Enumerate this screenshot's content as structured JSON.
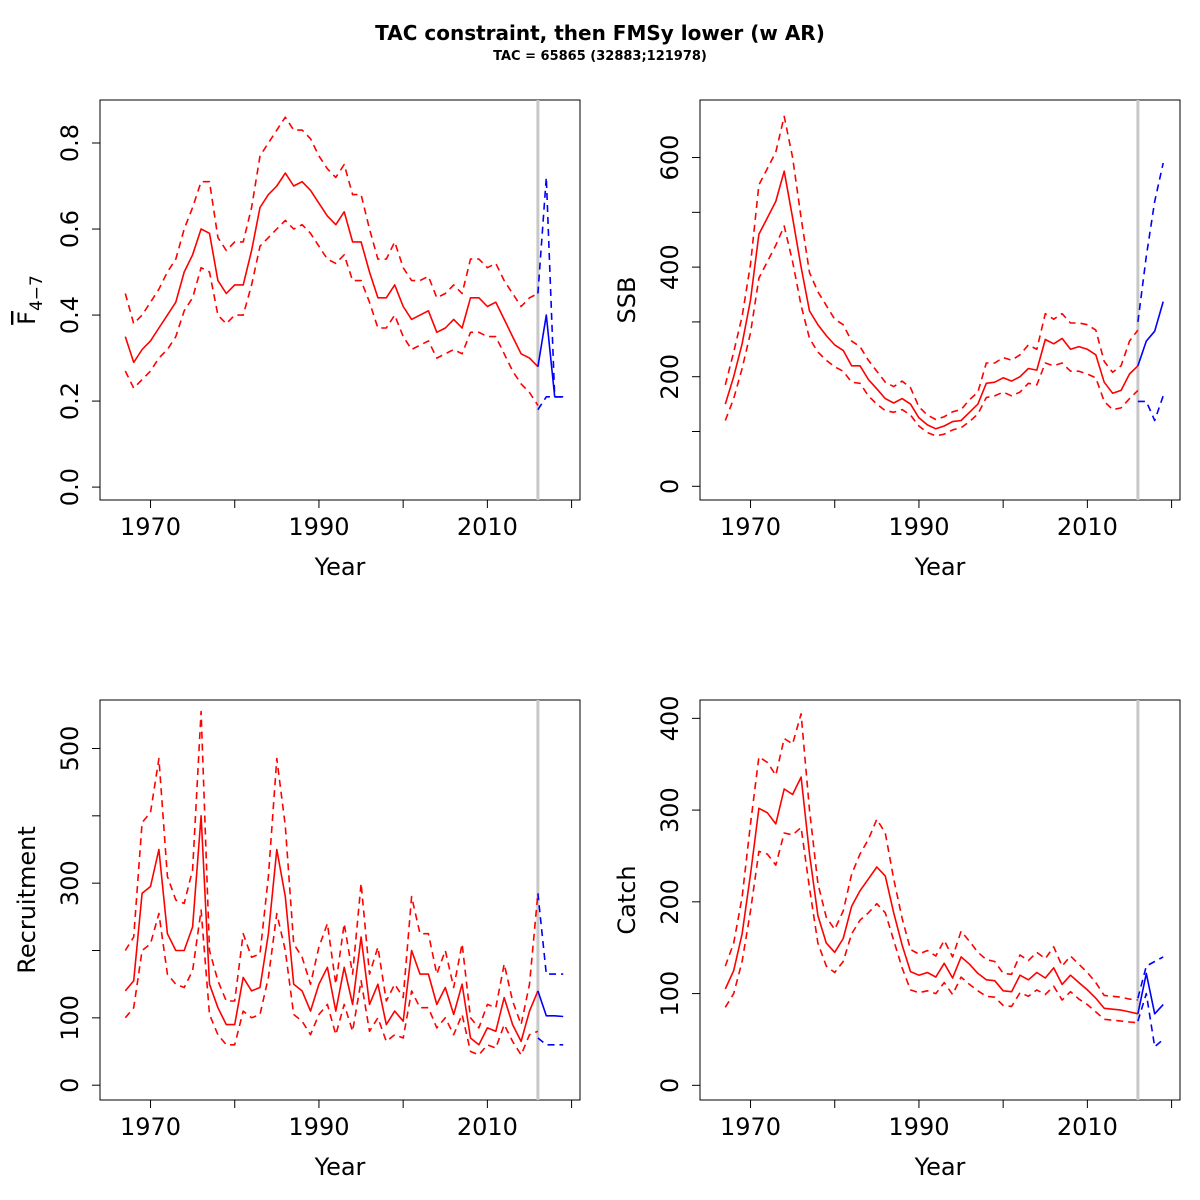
{
  "title": "TAC constraint, then FMSy lower (w AR)",
  "subtitle": "TAC = 65865 (32883;121978)",
  "colors": {
    "historic": "#ff0000",
    "forecast": "#0000ff",
    "divider": "#c8c8c8"
  },
  "chart_data": [
    {
      "type": "line",
      "panel": "top-left",
      "xlabel": "Year",
      "ylabel": "F",
      "ylabel_sub": "4−7",
      "xlim": [
        1964,
        2021
      ],
      "ylim": [
        -0.03,
        0.9
      ],
      "xticks": [
        1970,
        1980,
        1990,
        2000,
        2010,
        2020
      ],
      "xtick_labels": [
        "1970",
        "",
        "1990",
        "",
        "2010",
        ""
      ],
      "yticks": [
        0.0,
        0.2,
        0.4,
        0.6,
        0.8
      ],
      "ytick_labels": [
        "0.0",
        "0.2",
        "0.4",
        "0.6",
        "0.8"
      ],
      "divider_year": 2016,
      "historic": {
        "x": [
          1967,
          1968,
          1969,
          1970,
          1971,
          1972,
          1973,
          1974,
          1975,
          1976,
          1977,
          1978,
          1979,
          1980,
          1981,
          1982,
          1983,
          1984,
          1985,
          1986,
          1987,
          1988,
          1989,
          1990,
          1991,
          1992,
          1993,
          1994,
          1995,
          1996,
          1997,
          1998,
          1999,
          2000,
          2001,
          2002,
          2003,
          2004,
          2005,
          2006,
          2007,
          2008,
          2009,
          2010,
          2011,
          2012,
          2013,
          2014,
          2015,
          2016
        ],
        "y": [
          0.35,
          0.29,
          0.32,
          0.34,
          0.37,
          0.4,
          0.43,
          0.5,
          0.54,
          0.6,
          0.59,
          0.48,
          0.45,
          0.47,
          0.47,
          0.55,
          0.65,
          0.68,
          0.7,
          0.73,
          0.7,
          0.71,
          0.69,
          0.66,
          0.63,
          0.61,
          0.64,
          0.57,
          0.57,
          0.5,
          0.44,
          0.44,
          0.47,
          0.42,
          0.39,
          0.4,
          0.41,
          0.36,
          0.37,
          0.39,
          0.37,
          0.44,
          0.44,
          0.42,
          0.43,
          0.39,
          0.35,
          0.31,
          0.3,
          0.28
        ],
        "lower": [
          0.27,
          0.23,
          0.25,
          0.27,
          0.3,
          0.32,
          0.35,
          0.41,
          0.44,
          0.51,
          0.5,
          0.4,
          0.38,
          0.4,
          0.4,
          0.47,
          0.56,
          0.58,
          0.6,
          0.62,
          0.6,
          0.61,
          0.59,
          0.56,
          0.53,
          0.52,
          0.54,
          0.48,
          0.48,
          0.43,
          0.37,
          0.37,
          0.4,
          0.35,
          0.32,
          0.33,
          0.34,
          0.3,
          0.31,
          0.32,
          0.31,
          0.36,
          0.36,
          0.35,
          0.35,
          0.31,
          0.27,
          0.24,
          0.22,
          0.19
        ],
        "upper": [
          0.45,
          0.38,
          0.4,
          0.43,
          0.46,
          0.5,
          0.53,
          0.6,
          0.65,
          0.71,
          0.71,
          0.58,
          0.55,
          0.57,
          0.57,
          0.65,
          0.77,
          0.8,
          0.83,
          0.86,
          0.83,
          0.83,
          0.81,
          0.77,
          0.74,
          0.72,
          0.75,
          0.68,
          0.68,
          0.6,
          0.53,
          0.53,
          0.57,
          0.51,
          0.48,
          0.48,
          0.49,
          0.44,
          0.45,
          0.47,
          0.45,
          0.53,
          0.53,
          0.51,
          0.52,
          0.48,
          0.45,
          0.42,
          0.44,
          0.45
        ]
      },
      "forecast": {
        "x": [
          2016,
          2017,
          2018,
          2019
        ],
        "y": [
          0.28,
          0.4,
          0.21,
          0.21
        ],
        "lower": [
          0.18,
          0.21,
          0.21,
          0.21
        ],
        "upper": [
          0.45,
          0.72,
          0.21,
          0.21
        ]
      }
    },
    {
      "type": "line",
      "panel": "top-right",
      "xlabel": "Year",
      "ylabel": "SSB",
      "xlim": [
        1964,
        2021
      ],
      "ylim": [
        -25,
        705
      ],
      "xticks": [
        1970,
        1980,
        1990,
        2000,
        2010,
        2020
      ],
      "xtick_labels": [
        "1970",
        "",
        "1990",
        "",
        "2010",
        ""
      ],
      "yticks": [
        0,
        100,
        200,
        300,
        400,
        500,
        600
      ],
      "ytick_labels": [
        "0",
        "",
        "200",
        "",
        "400",
        "",
        "600"
      ],
      "divider_year": 2016,
      "historic": {
        "x": [
          1967,
          1968,
          1969,
          1970,
          1971,
          1972,
          1973,
          1974,
          1975,
          1976,
          1977,
          1978,
          1979,
          1980,
          1981,
          1982,
          1983,
          1984,
          1985,
          1986,
          1987,
          1988,
          1989,
          1990,
          1991,
          1992,
          1993,
          1994,
          1995,
          1996,
          1997,
          1998,
          1999,
          2000,
          2001,
          2002,
          2003,
          2004,
          2005,
          2006,
          2007,
          2008,
          2009,
          2010,
          2011,
          2012,
          2013,
          2014,
          2015,
          2016
        ],
        "y": [
          150,
          200,
          260,
          340,
          460,
          490,
          520,
          575,
          490,
          400,
          320,
          295,
          275,
          258,
          248,
          220,
          220,
          195,
          178,
          160,
          152,
          160,
          150,
          125,
          112,
          105,
          110,
          118,
          120,
          135,
          150,
          188,
          190,
          198,
          192,
          200,
          215,
          212,
          268,
          260,
          270,
          250,
          255,
          250,
          240,
          190,
          170,
          175,
          205,
          220
        ],
        "lower": [
          120,
          160,
          215,
          280,
          380,
          410,
          440,
          475,
          410,
          330,
          270,
          245,
          230,
          218,
          210,
          190,
          188,
          165,
          150,
          138,
          135,
          140,
          130,
          110,
          98,
          92,
          95,
          103,
          107,
          118,
          132,
          162,
          165,
          172,
          165,
          172,
          188,
          185,
          225,
          220,
          225,
          210,
          210,
          205,
          198,
          155,
          140,
          143,
          160,
          175
        ],
        "upper": [
          185,
          245,
          310,
          405,
          550,
          580,
          610,
          675,
          600,
          490,
          390,
          355,
          330,
          305,
          295,
          265,
          255,
          230,
          210,
          190,
          182,
          192,
          180,
          145,
          130,
          122,
          127,
          136,
          140,
          158,
          172,
          225,
          225,
          235,
          230,
          240,
          258,
          250,
          315,
          305,
          315,
          298,
          298,
          295,
          285,
          228,
          208,
          220,
          265,
          285
        ]
      },
      "forecast": {
        "x": [
          2016,
          2017,
          2018,
          2019
        ],
        "y": [
          220,
          265,
          283,
          337
        ],
        "lower": [
          155,
          155,
          120,
          165
        ],
        "upper": [
          300,
          420,
          520,
          590
        ]
      }
    },
    {
      "type": "line",
      "panel": "bottom-left",
      "xlabel": "Year",
      "ylabel": "Recruitment",
      "xlim": [
        1964,
        2021
      ],
      "ylim": [
        -22,
        572
      ],
      "xticks": [
        1970,
        1980,
        1990,
        2000,
        2010,
        2020
      ],
      "xtick_labels": [
        "1970",
        "",
        "1990",
        "",
        "2010",
        ""
      ],
      "yticks": [
        0,
        100,
        200,
        300,
        400,
        500
      ],
      "ytick_labels": [
        "0",
        "100",
        "",
        "300",
        "",
        "500"
      ],
      "divider_year": 2016,
      "historic": {
        "x": [
          1967,
          1968,
          1969,
          1970,
          1971,
          1972,
          1973,
          1974,
          1975,
          1976,
          1977,
          1978,
          1979,
          1980,
          1981,
          1982,
          1983,
          1984,
          1985,
          1986,
          1987,
          1988,
          1989,
          1990,
          1991,
          1992,
          1993,
          1994,
          1995,
          1996,
          1997,
          1998,
          1999,
          2000,
          2001,
          2002,
          2003,
          2004,
          2005,
          2006,
          2007,
          2008,
          2009,
          2010,
          2011,
          2012,
          2013,
          2014,
          2015,
          2016
        ],
        "y": [
          140,
          155,
          285,
          295,
          350,
          225,
          200,
          200,
          235,
          400,
          150,
          115,
          90,
          90,
          160,
          140,
          145,
          225,
          350,
          280,
          150,
          140,
          110,
          150,
          175,
          110,
          175,
          120,
          220,
          120,
          150,
          90,
          110,
          95,
          200,
          165,
          165,
          120,
          145,
          105,
          150,
          70,
          60,
          85,
          80,
          130,
          90,
          65,
          110,
          140
        ],
        "lower": [
          100,
          115,
          200,
          210,
          255,
          165,
          150,
          145,
          170,
          260,
          105,
          75,
          60,
          60,
          110,
          100,
          105,
          160,
          255,
          200,
          105,
          95,
          75,
          105,
          120,
          75,
          120,
          80,
          155,
          80,
          100,
          65,
          75,
          70,
          140,
          115,
          115,
          85,
          100,
          75,
          105,
          50,
          45,
          60,
          55,
          90,
          65,
          45,
          75,
          80
        ],
        "upper": [
          200,
          220,
          390,
          405,
          485,
          310,
          275,
          270,
          320,
          555,
          200,
          155,
          125,
          125,
          225,
          190,
          195,
          310,
          485,
          385,
          210,
          190,
          150,
          205,
          240,
          150,
          240,
          165,
          300,
          165,
          205,
          125,
          150,
          130,
          280,
          225,
          225,
          165,
          200,
          145,
          210,
          100,
          85,
          120,
          115,
          180,
          125,
          90,
          150,
          285
        ]
      },
      "forecast": {
        "x": [
          2016,
          2017,
          2018,
          2019
        ],
        "y": [
          140,
          103,
          103,
          102
        ],
        "lower": [
          70,
          60,
          60,
          60
        ],
        "upper": [
          285,
          165,
          165,
          165
        ]
      }
    },
    {
      "type": "line",
      "panel": "bottom-right",
      "xlabel": "Year",
      "ylabel": "Catch",
      "xlim": [
        1964,
        2021
      ],
      "ylim": [
        -16,
        420
      ],
      "xticks": [
        1970,
        1980,
        1990,
        2000,
        2010,
        2020
      ],
      "xtick_labels": [
        "1970",
        "",
        "1990",
        "",
        "2010",
        ""
      ],
      "yticks": [
        0,
        100,
        200,
        300,
        400
      ],
      "ytick_labels": [
        "0",
        "100",
        "200",
        "300",
        "400"
      ],
      "divider_year": 2016,
      "historic": {
        "x": [
          1967,
          1968,
          1969,
          1970,
          1971,
          1972,
          1973,
          1974,
          1975,
          1976,
          1977,
          1978,
          1979,
          1980,
          1981,
          1982,
          1983,
          1984,
          1985,
          1986,
          1987,
          1988,
          1989,
          1990,
          1991,
          1992,
          1993,
          1994,
          1995,
          1996,
          1997,
          1998,
          1999,
          2000,
          2001,
          2002,
          2003,
          2004,
          2005,
          2006,
          2007,
          2008,
          2009,
          2010,
          2011,
          2012,
          2013,
          2014,
          2015,
          2016
        ],
        "y": [
          105,
          125,
          165,
          230,
          302,
          297,
          285,
          323,
          317,
          336,
          252,
          185,
          155,
          145,
          160,
          195,
          212,
          225,
          238,
          228,
          188,
          153,
          124,
          120,
          123,
          118,
          133,
          117,
          140,
          132,
          122,
          115,
          114,
          103,
          102,
          120,
          115,
          123,
          117,
          128,
          110,
          120,
          112,
          104,
          95,
          84,
          83,
          82,
          80,
          78
        ],
        "lower": [
          85,
          100,
          135,
          190,
          255,
          252,
          240,
          275,
          273,
          281,
          215,
          155,
          130,
          123,
          135,
          165,
          180,
          188,
          198,
          188,
          158,
          128,
          104,
          101,
          103,
          100,
          112,
          99,
          118,
          110,
          103,
          97,
          96,
          87,
          86,
          101,
          97,
          104,
          99,
          108,
          93,
          102,
          94,
          88,
          80,
          72,
          71,
          70,
          69,
          68
        ],
        "upper": [
          130,
          155,
          205,
          285,
          358,
          352,
          338,
          378,
          372,
          405,
          300,
          220,
          183,
          170,
          190,
          230,
          252,
          268,
          290,
          275,
          225,
          182,
          148,
          143,
          147,
          141,
          158,
          140,
          168,
          157,
          145,
          137,
          135,
          122,
          121,
          142,
          136,
          145,
          138,
          151,
          130,
          141,
          132,
          123,
          112,
          98,
          97,
          96,
          94,
          93
        ]
      },
      "forecast": {
        "x": [
          2016,
          2017,
          2018,
          2019
        ],
        "y": [
          78,
          122,
          78,
          88
        ],
        "lower": [
          70,
          100,
          42,
          50
        ],
        "upper": [
          95,
          130,
          135,
          140
        ]
      }
    }
  ]
}
